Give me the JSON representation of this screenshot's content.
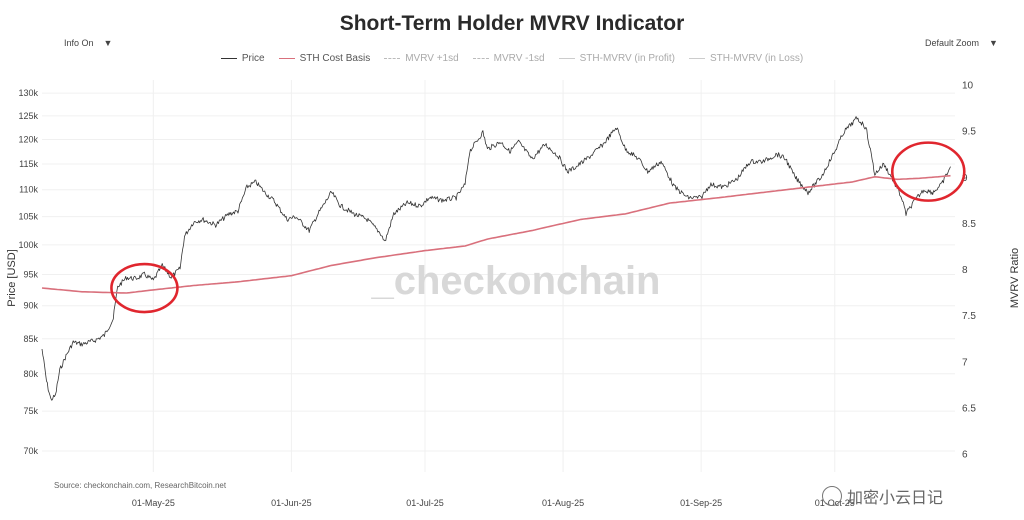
{
  "header": {
    "info_label": "Info On",
    "zoom_label": "Default Zoom",
    "dropdown_glyph": "▼"
  },
  "legend": [
    {
      "label": "Price",
      "color": "#333333",
      "style": "solid",
      "faded": false
    },
    {
      "label": "STH Cost Basis",
      "color": "#d9707c",
      "style": "solid",
      "faded": false
    },
    {
      "label": "MVRV +1sd",
      "color": "#bbbbbb",
      "style": "dashed",
      "faded": true
    },
    {
      "label": "MVRV -1sd",
      "color": "#bbbbbb",
      "style": "dashed",
      "faded": true
    },
    {
      "label": "STH-MVRV (in Profit)",
      "color": "#cccccc",
      "style": "solid",
      "faded": true
    },
    {
      "label": "STH-MVRV (in Loss)",
      "color": "#cccccc",
      "style": "solid",
      "faded": true
    }
  ],
  "watermark": "_checkonchain",
  "source": "Source: checkonchain.com, ResearchBitcoin.net",
  "footer_watermark": "加密小云日记",
  "colors": {
    "price": "#333333",
    "cost_basis": "#d9707c",
    "annotation": "#e0262e",
    "grid": "#f0f0f0",
    "watermark": "#d8d8d8"
  },
  "chart_data": {
    "type": "line",
    "title": "Short-Term Holder MVRV Indicator",
    "ylabel": "Price [USD]",
    "ylabel_right": "MVRV Ratio",
    "yscale": "log",
    "ylim": [
      67500,
      133000
    ],
    "ylim_right": [
      5.8,
      10.05
    ],
    "yticks": [
      70000,
      75000,
      80000,
      85000,
      90000,
      95000,
      100000,
      105000,
      110000,
      115000,
      120000,
      125000,
      130000
    ],
    "ytick_labels": [
      "70k",
      "75k",
      "80k",
      "85k",
      "90k",
      "95k",
      "100k",
      "105k",
      "110k",
      "115k",
      "120k",
      "125k",
      "130k"
    ],
    "yticks_right": [
      6,
      6.5,
      7,
      7.5,
      8,
      8.5,
      9,
      9.5,
      10
    ],
    "xlim": [
      "2025-04-06",
      "2025-10-28"
    ],
    "xticks": [
      "2025-05-01",
      "2025-06-01",
      "2025-07-01",
      "2025-08-01",
      "2025-09-01",
      "2025-10-01"
    ],
    "xtick_labels": [
      "01-May-25",
      "01-Jun-25",
      "01-Jul-25",
      "01-Aug-25",
      "01-Sep-25",
      "01-Oct-25"
    ],
    "grid": true,
    "legend_position": "top",
    "series": [
      {
        "name": "Price",
        "color": "#333333",
        "points": [
          [
            "2025-04-06",
            83500
          ],
          [
            "2025-04-07",
            79000
          ],
          [
            "2025-04-08",
            76500
          ],
          [
            "2025-04-09",
            77000
          ],
          [
            "2025-04-10",
            80500
          ],
          [
            "2025-04-11",
            82000
          ],
          [
            "2025-04-13",
            84500
          ],
          [
            "2025-04-15",
            84200
          ],
          [
            "2025-04-18",
            84800
          ],
          [
            "2025-04-20",
            85500
          ],
          [
            "2025-04-22",
            88000
          ],
          [
            "2025-04-23",
            93000
          ],
          [
            "2025-04-25",
            94500
          ],
          [
            "2025-04-27",
            94300
          ],
          [
            "2025-04-29",
            95000
          ],
          [
            "2025-05-01",
            94000
          ],
          [
            "2025-05-03",
            96500
          ],
          [
            "2025-05-05",
            94500
          ],
          [
            "2025-05-07",
            96000
          ],
          [
            "2025-05-08",
            101500
          ],
          [
            "2025-05-10",
            104000
          ],
          [
            "2025-05-12",
            104500
          ],
          [
            "2025-05-15",
            103500
          ],
          [
            "2025-05-18",
            105500
          ],
          [
            "2025-05-20",
            106000
          ],
          [
            "2025-05-22",
            110500
          ],
          [
            "2025-05-24",
            111500
          ],
          [
            "2025-05-26",
            109500
          ],
          [
            "2025-05-28",
            108000
          ],
          [
            "2025-05-31",
            104500
          ],
          [
            "2025-06-02",
            105000
          ],
          [
            "2025-06-05",
            102500
          ],
          [
            "2025-06-07",
            105500
          ],
          [
            "2025-06-10",
            109500
          ],
          [
            "2025-06-12",
            107000
          ],
          [
            "2025-06-15",
            105500
          ],
          [
            "2025-06-18",
            104500
          ],
          [
            "2025-06-21",
            102000
          ],
          [
            "2025-06-22",
            100500
          ],
          [
            "2025-06-24",
            105500
          ],
          [
            "2025-06-27",
            107500
          ],
          [
            "2025-06-30",
            107000
          ],
          [
            "2025-07-02",
            108500
          ],
          [
            "2025-07-05",
            108000
          ],
          [
            "2025-07-08",
            108500
          ],
          [
            "2025-07-10",
            111000
          ],
          [
            "2025-07-11",
            117500
          ],
          [
            "2025-07-14",
            121500
          ],
          [
            "2025-07-15",
            118000
          ],
          [
            "2025-07-18",
            119500
          ],
          [
            "2025-07-20",
            117500
          ],
          [
            "2025-07-22",
            119500
          ],
          [
            "2025-07-25",
            116000
          ],
          [
            "2025-07-28",
            119000
          ],
          [
            "2025-07-31",
            116500
          ],
          [
            "2025-08-02",
            113500
          ],
          [
            "2025-08-04",
            114500
          ],
          [
            "2025-08-07",
            116500
          ],
          [
            "2025-08-10",
            119000
          ],
          [
            "2025-08-13",
            122500
          ],
          [
            "2025-08-15",
            118000
          ],
          [
            "2025-08-18",
            116000
          ],
          [
            "2025-08-20",
            113500
          ],
          [
            "2025-08-23",
            115500
          ],
          [
            "2025-08-26",
            110500
          ],
          [
            "2025-08-29",
            108500
          ],
          [
            "2025-09-01",
            108500
          ],
          [
            "2025-09-03",
            111000
          ],
          [
            "2025-09-06",
            110500
          ],
          [
            "2025-09-09",
            112000
          ],
          [
            "2025-09-12",
            115500
          ],
          [
            "2025-09-15",
            115500
          ],
          [
            "2025-09-18",
            117000
          ],
          [
            "2025-09-20",
            116000
          ],
          [
            "2025-09-22",
            112500
          ],
          [
            "2025-09-25",
            109500
          ],
          [
            "2025-09-28",
            112500
          ],
          [
            "2025-10-01",
            117500
          ],
          [
            "2025-10-03",
            121500
          ],
          [
            "2025-10-06",
            124500
          ],
          [
            "2025-10-08",
            122500
          ],
          [
            "2025-10-10",
            113000
          ],
          [
            "2025-10-12",
            115000
          ],
          [
            "2025-10-14",
            112000
          ],
          [
            "2025-10-16",
            108500
          ],
          [
            "2025-10-17",
            105500
          ],
          [
            "2025-10-19",
            108000
          ],
          [
            "2025-10-21",
            110000
          ],
          [
            "2025-10-23",
            109500
          ],
          [
            "2025-10-25",
            111000
          ],
          [
            "2025-10-27",
            114500
          ]
        ]
      },
      {
        "name": "STH Cost Basis",
        "color": "#d9707c",
        "points": [
          [
            "2025-04-06",
            92800
          ],
          [
            "2025-04-15",
            92200
          ],
          [
            "2025-04-25",
            92000
          ],
          [
            "2025-05-01",
            92500
          ],
          [
            "2025-05-10",
            93200
          ],
          [
            "2025-05-20",
            93800
          ],
          [
            "2025-06-01",
            94800
          ],
          [
            "2025-06-10",
            96500
          ],
          [
            "2025-06-20",
            97800
          ],
          [
            "2025-07-01",
            99000
          ],
          [
            "2025-07-10",
            99800
          ],
          [
            "2025-07-15",
            101000
          ],
          [
            "2025-07-25",
            102500
          ],
          [
            "2025-08-05",
            104500
          ],
          [
            "2025-08-15",
            105500
          ],
          [
            "2025-08-25",
            107500
          ],
          [
            "2025-09-05",
            108500
          ],
          [
            "2025-09-15",
            109500
          ],
          [
            "2025-09-25",
            110500
          ],
          [
            "2025-10-05",
            111500
          ],
          [
            "2025-10-10",
            112500
          ],
          [
            "2025-10-15",
            112000
          ],
          [
            "2025-10-20",
            112200
          ],
          [
            "2025-10-27",
            112700
          ]
        ]
      }
    ],
    "annotations": [
      {
        "type": "ellipse",
        "center": [
          "2025-04-29",
          92800
        ],
        "color": "#e0262e"
      },
      {
        "type": "ellipse",
        "center": [
          "2025-10-22",
          113500
        ],
        "color": "#e0262e"
      }
    ]
  }
}
